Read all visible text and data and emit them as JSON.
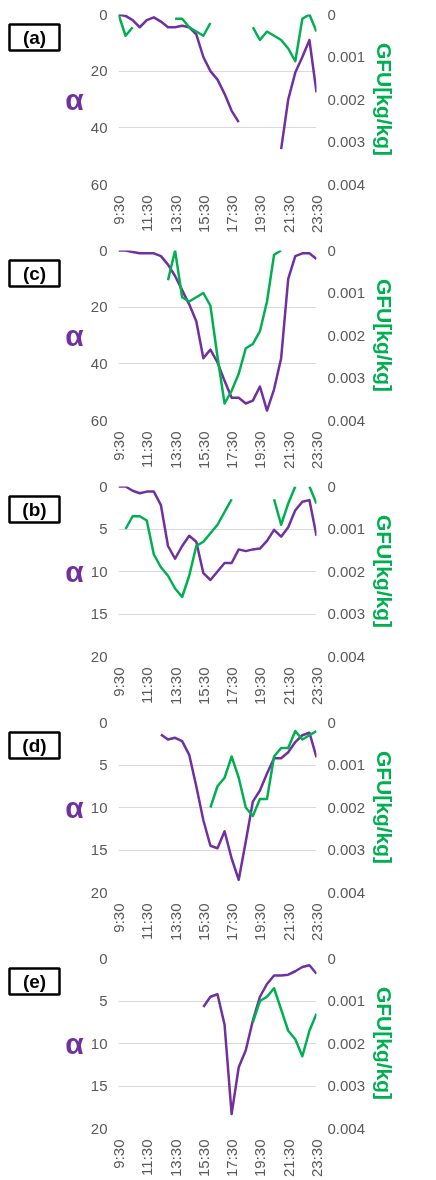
{
  "chart_data": [
    {
      "type": "line",
      "title": "(a)",
      "ylabel": "α",
      "y2label": "GFU[kg/kg]",
      "grid": "y",
      "x": [
        9.5,
        10,
        10.5,
        11,
        11.5,
        12,
        12.5,
        13,
        13.5,
        14,
        14.5,
        15,
        15.5,
        16,
        16.5,
        17,
        17.5,
        18,
        18.5,
        19,
        19.5,
        20,
        20.5,
        21,
        21.5,
        22,
        22.5,
        23,
        23.5
      ],
      "xlim": [
        9.5,
        23.5
      ],
      "xticks": [
        {
          "value": 9.5,
          "label": "9:30"
        },
        {
          "value": 11.5,
          "label": "11:30"
        },
        {
          "value": 13.5,
          "label": "13:30"
        },
        {
          "value": 15.5,
          "label": "15:30"
        },
        {
          "value": 17.5,
          "label": "17:30"
        },
        {
          "value": 19.5,
          "label": "19:30"
        },
        {
          "value": 21.5,
          "label": "21:30"
        },
        {
          "value": 23.5,
          "label": "23:30"
        }
      ],
      "ylim": [
        60,
        0
      ],
      "yticks": [
        0,
        20,
        40,
        60
      ],
      "y2lim": [
        0.004,
        0
      ],
      "y2ticks": [
        0,
        0.001,
        0.002,
        0.003,
        0.004
      ],
      "series": [
        {
          "color": "#7030a0",
          "values": [
            0,
            0.5,
            2,
            4.5,
            2,
            1,
            2.5,
            4.5,
            4.5,
            4,
            4.5,
            7,
            15,
            20,
            23,
            28,
            34,
            38,
            null,
            null,
            null,
            null,
            null,
            47.5,
            30,
            20.5,
            15,
            9,
            27.5
          ]
        },
        {
          "color": "#00b050",
          "axis": "y2",
          "values": [
            0,
            0.0005,
            0.0003,
            null,
            null,
            null,
            null,
            null,
            0.0001,
            0.0001,
            0.0003,
            0.0004,
            0.0005,
            0.0002,
            null,
            null,
            null,
            null,
            null,
            0.0003,
            0.0006,
            0.0004,
            0.0005,
            0.0006,
            0.0008,
            0.0011,
            0.0001,
            0,
            0.0004
          ]
        }
      ]
    },
    {
      "type": "line",
      "title": "(c)",
      "ylabel": "α",
      "y2label": "GFU[kg/kg]",
      "grid": "y",
      "x": [
        9.5,
        10,
        10.5,
        11,
        11.5,
        12,
        12.5,
        13,
        13.5,
        14,
        14.5,
        15,
        15.5,
        16,
        16.5,
        17,
        17.5,
        18,
        18.5,
        19,
        19.5,
        20,
        20.5,
        21,
        21.5,
        22,
        22.5,
        23,
        23.5
      ],
      "xlim": [
        9.5,
        23.5
      ],
      "xticks": [
        {
          "value": 9.5,
          "label": "9:30"
        },
        {
          "value": 11.5,
          "label": "11:30"
        },
        {
          "value": 13.5,
          "label": "13:30"
        },
        {
          "value": 15.5,
          "label": "15:30"
        },
        {
          "value": 17.5,
          "label": "17:30"
        },
        {
          "value": 19.5,
          "label": "19:30"
        },
        {
          "value": 21.5,
          "label": "21:30"
        },
        {
          "value": 23.5,
          "label": "23:30"
        }
      ],
      "ylim": [
        60,
        0
      ],
      "yticks": [
        0,
        20,
        40,
        60
      ],
      "y2lim": [
        0.004,
        0
      ],
      "y2ticks": [
        0,
        0.001,
        0.002,
        0.003,
        0.004
      ],
      "series": [
        {
          "color": "#7030a0",
          "values": [
            0,
            0,
            0.5,
            1,
            1,
            1,
            2,
            5,
            9,
            14,
            19,
            25,
            38,
            35,
            39.5,
            46,
            52,
            52,
            54,
            53,
            48,
            56.5,
            49,
            38,
            10,
            2,
            1,
            1,
            3
          ]
        },
        {
          "color": "#00b050",
          "axis": "y2",
          "values": [
            null,
            null,
            null,
            null,
            null,
            null,
            null,
            0.0007,
            0,
            0.0011,
            0.0012,
            0.0011,
            0.001,
            0.0013,
            0.0025,
            0.0036,
            0.0033,
            0.0029,
            0.0023,
            0.0022,
            0.0019,
            0.0012,
            0.0001,
            0,
            null,
            null,
            null,
            null,
            null
          ]
        }
      ]
    },
    {
      "type": "line",
      "title": "(b)",
      "ylabel": "α",
      "y2label": "GFU[kg/kg]",
      "grid": "y",
      "x": [
        9.5,
        10,
        10.5,
        11,
        11.5,
        12,
        12.5,
        13,
        13.5,
        14,
        14.5,
        15,
        15.5,
        16,
        16.5,
        17,
        17.5,
        18,
        18.5,
        19,
        19.5,
        20,
        20.5,
        21,
        21.5,
        22,
        22.5,
        23,
        23.5
      ],
      "xlim": [
        9.5,
        23.5
      ],
      "xticks": [
        {
          "value": 9.5,
          "label": "9:30"
        },
        {
          "value": 11.5,
          "label": "11:30"
        },
        {
          "value": 13.5,
          "label": "13:30"
        },
        {
          "value": 15.5,
          "label": "15:30"
        },
        {
          "value": 17.5,
          "label": "17:30"
        },
        {
          "value": 19.5,
          "label": "19:30"
        },
        {
          "value": 21.5,
          "label": "21:30"
        },
        {
          "value": 23.5,
          "label": "23:30"
        }
      ],
      "ylim": [
        20,
        0
      ],
      "yticks": [
        0,
        5,
        10,
        15,
        20
      ],
      "y2lim": [
        0.004,
        0
      ],
      "y2ticks": [
        0,
        0.001,
        0.002,
        0.003,
        0.004
      ],
      "series": [
        {
          "color": "#7030a0",
          "values": [
            0,
            0,
            0.5,
            0.8,
            0.6,
            0.6,
            2.2,
            7,
            8.5,
            7,
            5.8,
            6.5,
            10.2,
            11,
            10,
            9,
            9,
            7.4,
            7.6,
            7.4,
            7.3,
            6.4,
            5.1,
            5.9,
            4.8,
            2.8,
            1.8,
            1.6,
            5.8
          ]
        },
        {
          "color": "#00b050",
          "axis": "y2",
          "values": [
            null,
            0.001,
            0.0007,
            0.0007,
            0.0008,
            0.0016,
            0.0019,
            0.0021,
            0.0024,
            0.0026,
            0.0021,
            0.0014,
            0.0013,
            0.0011,
            0.0009,
            0.0006,
            0.0003,
            null,
            null,
            null,
            null,
            null,
            0.0003,
            0.0009,
            0.0004,
            0,
            null,
            0,
            0.0004
          ]
        }
      ]
    },
    {
      "type": "line",
      "title": "(d)",
      "ylabel": "α",
      "y2label": "GFU[kg/kg]",
      "grid": "y",
      "x": [
        12.5,
        13,
        13.5,
        14,
        14.5,
        15,
        15.5,
        16,
        16.5,
        17,
        17.5,
        18,
        18.5,
        19,
        19.5,
        20,
        20.5,
        21,
        21.5,
        22,
        22.5,
        23,
        23.5
      ],
      "xlim": [
        9.5,
        23.5
      ],
      "xticks": [
        {
          "value": 9.5,
          "label": "9:30"
        },
        {
          "value": 11.5,
          "label": "11:30"
        },
        {
          "value": 13.5,
          "label": "13:30"
        },
        {
          "value": 15.5,
          "label": "15:30"
        },
        {
          "value": 17.5,
          "label": "17:30"
        },
        {
          "value": 19.5,
          "label": "19:30"
        },
        {
          "value": 21.5,
          "label": "21:30"
        },
        {
          "value": 23.5,
          "label": "23:30"
        }
      ],
      "ylim": [
        20,
        0
      ],
      "yticks": [
        0,
        5,
        10,
        15,
        20
      ],
      "y2lim": [
        0.004,
        0
      ],
      "y2ticks": [
        0,
        0.001,
        0.002,
        0.003,
        0.004
      ],
      "series": [
        {
          "color": "#7030a0",
          "values": [
            1.4,
            2,
            1.8,
            2.2,
            3.8,
            7.5,
            11.5,
            14.5,
            14.8,
            12.8,
            16,
            18.5,
            14,
            9.3,
            8,
            6,
            4.2,
            4.2,
            3.5,
            2.3,
            1.5,
            1.2,
            4.1
          ]
        },
        {
          "color": "#00b050",
          "axis": "y2",
          "values": [
            null,
            null,
            null,
            null,
            null,
            null,
            null,
            0.002,
            0.0015,
            0.0013,
            0.0008,
            0.0013,
            0.002,
            0.0022,
            0.0018,
            0.0018,
            0.0008,
            0.0006,
            0.0006,
            0.0002,
            0.0004,
            0.0003,
            0.0002
          ]
        }
      ]
    },
    {
      "type": "line",
      "title": "(e)",
      "ylabel": "α",
      "y2label": "GFU[kg/kg]",
      "grid": "y",
      "x": [
        15.5,
        16,
        16.5,
        17,
        17.5,
        18,
        18.5,
        19,
        19.5,
        20,
        20.5,
        21,
        21.5,
        22,
        22.5,
        23,
        23.5
      ],
      "xlim": [
        9.5,
        23.5
      ],
      "xticks": [
        {
          "value": 9.5,
          "label": "9:30"
        },
        {
          "value": 11.5,
          "label": "11:30"
        },
        {
          "value": 13.5,
          "label": "13:30"
        },
        {
          "value": 15.5,
          "label": "15:30"
        },
        {
          "value": 17.5,
          "label": "17:30"
        },
        {
          "value": 19.5,
          "label": "19:30"
        },
        {
          "value": 21.5,
          "label": "21:30"
        },
        {
          "value": 23.5,
          "label": "23:30"
        }
      ],
      "ylim": [
        20,
        0
      ],
      "yticks": [
        0,
        5,
        10,
        15,
        20
      ],
      "y2lim": [
        0.004,
        0
      ],
      "y2ticks": [
        0,
        0.001,
        0.002,
        0.003,
        0.004
      ],
      "series": [
        {
          "color": "#7030a0",
          "values": [
            5.7,
            4.5,
            4.2,
            7.8,
            18.3,
            12.8,
            10.8,
            7.3,
            4.5,
            3,
            2,
            2,
            1.9,
            1.5,
            1,
            0.8,
            1.8
          ]
        },
        {
          "color": "#00b050",
          "axis": "y2",
          "values": [
            null,
            null,
            null,
            null,
            null,
            null,
            null,
            0.0015,
            0.001,
            0.0009,
            0.0007,
            0.0012,
            0.0017,
            0.0019,
            0.0023,
            0.0017,
            0.0013
          ]
        }
      ]
    }
  ]
}
